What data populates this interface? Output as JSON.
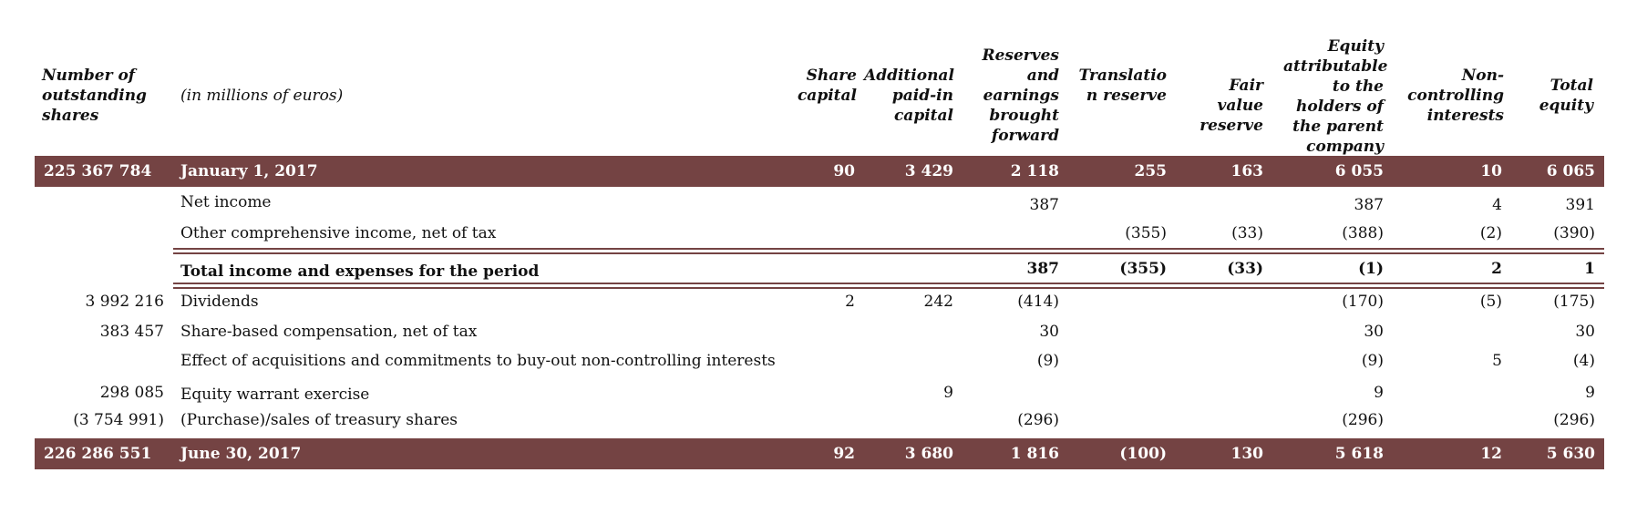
{
  "headers": {
    "shares": "Number of outstanding shares",
    "units": "(in millions of euros)",
    "share_capital": "Share capital",
    "apic": "Additional paid-in capital",
    "reserves": "Reserves and earnings brought forward",
    "translation": "Translatio n reserve",
    "fair_value": "Fair value reserve",
    "equity_parent": "Equity attributable to the holders of the parent company",
    "nci": "Non-controlling interests",
    "total": "Total equity"
  },
  "rows": {
    "jan": {
      "shares": "225 367 784",
      "label": "January 1, 2017",
      "share_capital": "90",
      "apic": "3 429",
      "reserves": "2 118",
      "translation": "255",
      "fair_value": "163",
      "equity_parent": "6 055",
      "nci": "10",
      "total": "6 065"
    },
    "net_income": {
      "label": "Net income",
      "reserves": "387",
      "equity_parent": "387",
      "nci": "4",
      "total": "391"
    },
    "oci": {
      "label": "Other comprehensive income, net of tax",
      "translation": "(355)",
      "fair_value": "(33)",
      "equity_parent": "(388)",
      "nci": "(2)",
      "total": "(390)"
    },
    "total_ie": {
      "label": "Total income and expenses for the period",
      "reserves": "387",
      "translation": "(355)",
      "fair_value": "(33)",
      "equity_parent": "(1)",
      "nci": "2",
      "total": "1"
    },
    "dividends": {
      "shares": "3 992 216",
      "label": "Dividends",
      "share_capital": "2",
      "apic": "242",
      "reserves": "(414)",
      "equity_parent": "(170)",
      "nci": "(5)",
      "total": "(175)"
    },
    "sbc": {
      "shares": "383 457",
      "label": "Share-based compensation, net of tax",
      "reserves": "30",
      "equity_parent": "30",
      "total": "30"
    },
    "acq": {
      "label": "Effect of acquisitions and commitments to buy-out non-controlling interests",
      "reserves": "(9)",
      "equity_parent": "(9)",
      "nci": "5",
      "total": "(4)"
    },
    "warrant": {
      "shares": "298 085",
      "label": "Equity warrant exercise",
      "apic": "9",
      "equity_parent": "9",
      "total": "9"
    },
    "treasury": {
      "shares": "(3 754 991)",
      "label": "(Purchase)/sales of treasury shares",
      "reserves": "(296)",
      "equity_parent": "(296)",
      "total": "(296)"
    },
    "jun": {
      "shares": "226 286 551",
      "label": "June 30, 2017",
      "share_capital": "92",
      "apic": "3 680",
      "reserves": "1 816",
      "translation": "(100)",
      "fair_value": "130",
      "equity_parent": "5 618",
      "nci": "12",
      "total": "5 630"
    }
  },
  "colors": {
    "band": "#744343",
    "band_text": "#ffffff"
  }
}
